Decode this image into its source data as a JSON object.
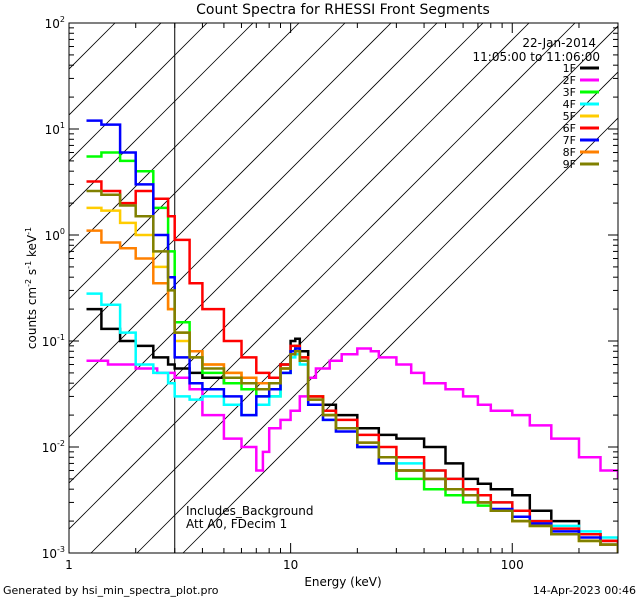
{
  "chart_data": {
    "type": "line",
    "title": "Count Spectra for RHESSI Front Segments",
    "xlabel": "Energy (keV)",
    "ylabel_parts": [
      "counts cm",
      "-2",
      " s",
      "-1",
      " keV",
      "-1"
    ],
    "xscale": "log",
    "yscale": "log",
    "xlim": [
      1,
      300
    ],
    "ylim": [
      0.001,
      100
    ],
    "x_ticks": [
      {
        "value": 1,
        "label": "1"
      },
      {
        "value": 10,
        "label": "10"
      },
      {
        "value": 100,
        "label": "100"
      }
    ],
    "y_ticks": [
      {
        "value": 0.001,
        "base": "10",
        "exp": "-3"
      },
      {
        "value": 0.01,
        "base": "10",
        "exp": "-2"
      },
      {
        "value": 0.1,
        "base": "10",
        "exp": "-1"
      },
      {
        "value": 1,
        "base": "10",
        "exp": "0"
      },
      {
        "value": 10,
        "base": "10",
        "exp": "1"
      },
      {
        "value": 100,
        "base": "10",
        "exp": "2"
      }
    ],
    "hatched_region": {
      "x_from": 1,
      "x_to": 3
    },
    "date": "22-Jan-2014",
    "time_range": "11:05:00 to 11:06:00",
    "legend_position": "top-right",
    "annotations": [
      "Includes_Background",
      "Att A0, FDecim 1"
    ],
    "series": [
      {
        "name": "1F",
        "color": "#000000",
        "x": [
          1.2,
          1.4,
          1.7,
          2.0,
          2.4,
          2.8,
          3.0,
          3.5,
          4.0,
          5.0,
          6.0,
          7.0,
          8.0,
          9.0,
          10.0,
          10.5,
          11.0,
          12.0,
          14.0,
          16.0,
          20.0,
          25.0,
          30.0,
          40.0,
          50.0,
          60.0,
          70.0,
          80.0,
          100.0,
          120.0,
          150.0,
          200.0,
          250.0,
          300.0
        ],
        "y": [
          0.2,
          0.13,
          0.1,
          0.09,
          0.07,
          0.06,
          0.055,
          0.05,
          0.045,
          0.04,
          0.04,
          0.035,
          0.035,
          0.06,
          0.1,
          0.105,
          0.08,
          0.03,
          0.025,
          0.02,
          0.015,
          0.013,
          0.012,
          0.01,
          0.007,
          0.005,
          0.0045,
          0.004,
          0.0035,
          0.0025,
          0.002,
          0.0015,
          0.0013,
          0.0012
        ]
      },
      {
        "name": "2F",
        "color": "#ff00ff",
        "x": [
          1.2,
          1.5,
          2.0,
          2.5,
          3.0,
          3.5,
          4.0,
          5.0,
          6.0,
          7.0,
          7.5,
          8.0,
          9.0,
          10.0,
          11.0,
          12.0,
          13.0,
          15.0,
          17.0,
          20.0,
          23.0,
          25.0,
          30.0,
          35.0,
          40.0,
          50.0,
          60.0,
          70.0,
          80.0,
          100.0,
          120.0,
          150.0,
          200.0,
          250.0,
          300.0
        ],
        "y": [
          0.065,
          0.06,
          0.055,
          0.05,
          0.045,
          0.035,
          0.02,
          0.012,
          0.01,
          0.006,
          0.009,
          0.015,
          0.018,
          0.022,
          0.03,
          0.045,
          0.055,
          0.065,
          0.075,
          0.085,
          0.08,
          0.07,
          0.06,
          0.05,
          0.04,
          0.035,
          0.03,
          0.025,
          0.022,
          0.02,
          0.016,
          0.012,
          0.008,
          0.006,
          0.005
        ]
      },
      {
        "name": "3F",
        "color": "#00ff00",
        "x": [
          1.2,
          1.4,
          1.7,
          2.0,
          2.4,
          2.8,
          3.0,
          3.5,
          4.0,
          5.0,
          6.0,
          7.0,
          8.0,
          9.0,
          10.0,
          10.5,
          11.0,
          12.0,
          14.0,
          16.0,
          20.0,
          25.0,
          30.0,
          40.0,
          50.0,
          60.0,
          70.0,
          80.0,
          100.0,
          120.0,
          150.0,
          200.0,
          250.0,
          300.0
        ],
        "y": [
          5.5,
          6.0,
          5.0,
          4.0,
          1.8,
          0.7,
          0.15,
          0.08,
          0.05,
          0.04,
          0.035,
          0.03,
          0.03,
          0.05,
          0.08,
          0.09,
          0.07,
          0.03,
          0.02,
          0.015,
          0.01,
          0.007,
          0.005,
          0.004,
          0.0035,
          0.003,
          0.0028,
          0.0025,
          0.002,
          0.0018,
          0.0015,
          0.0013,
          0.0012,
          0.001
        ]
      },
      {
        "name": "4F",
        "color": "#00ffff",
        "x": [
          1.2,
          1.4,
          1.7,
          2.0,
          2.4,
          2.8,
          3.0,
          3.5,
          4.0,
          5.0,
          6.0,
          7.0,
          8.0,
          9.0,
          10.0,
          10.5,
          11.0,
          12.0,
          14.0,
          16.0,
          20.0,
          25.0,
          30.0,
          40.0,
          50.0,
          60.0,
          70.0,
          80.0,
          100.0,
          120.0,
          150.0,
          200.0,
          250.0,
          300.0
        ],
        "y": [
          0.28,
          0.22,
          0.12,
          0.06,
          0.05,
          0.04,
          0.03,
          0.028,
          0.03,
          0.025,
          0.02,
          0.025,
          0.03,
          0.05,
          0.07,
          0.075,
          0.06,
          0.025,
          0.018,
          0.015,
          0.01,
          0.008,
          0.007,
          0.006,
          0.005,
          0.004,
          0.0035,
          0.003,
          0.0025,
          0.002,
          0.0018,
          0.0016,
          0.0014,
          0.0012
        ]
      },
      {
        "name": "5F",
        "color": "#ffcc00",
        "x": [
          1.2,
          1.4,
          1.7,
          2.0,
          2.4,
          2.8,
          3.0,
          3.5,
          4.0,
          5.0,
          6.0,
          7.0,
          8.0,
          9.0,
          10.0,
          10.5,
          11.0,
          12.0,
          14.0,
          16.0,
          20.0,
          25.0,
          30.0,
          40.0,
          50.0,
          60.0,
          70.0,
          80.0,
          100.0,
          120.0,
          150.0,
          200.0,
          250.0,
          300.0
        ],
        "y": [
          1.8,
          1.7,
          1.3,
          1.0,
          0.5,
          0.2,
          0.1,
          0.07,
          0.06,
          0.05,
          0.04,
          0.04,
          0.04,
          0.055,
          0.08,
          0.085,
          0.07,
          0.03,
          0.02,
          0.015,
          0.01,
          0.008,
          0.006,
          0.005,
          0.004,
          0.0035,
          0.003,
          0.0025,
          0.002,
          0.0018,
          0.0015,
          0.0013,
          0.0012,
          0.001
        ]
      },
      {
        "name": "6F",
        "color": "#ff0000",
        "x": [
          1.2,
          1.4,
          1.7,
          2.0,
          2.4,
          2.8,
          3.0,
          3.5,
          4.0,
          5.0,
          6.0,
          7.0,
          8.0,
          9.0,
          10.0,
          10.5,
          11.0,
          12.0,
          14.0,
          16.0,
          20.0,
          25.0,
          30.0,
          40.0,
          50.0,
          60.0,
          70.0,
          80.0,
          100.0,
          120.0,
          150.0,
          200.0,
          250.0,
          300.0
        ],
        "y": [
          3.2,
          2.6,
          2.0,
          2.6,
          2.2,
          1.5,
          0.9,
          0.35,
          0.2,
          0.1,
          0.07,
          0.05,
          0.045,
          0.06,
          0.09,
          0.09,
          0.07,
          0.03,
          0.022,
          0.018,
          0.013,
          0.01,
          0.008,
          0.006,
          0.005,
          0.004,
          0.0035,
          0.003,
          0.0025,
          0.002,
          0.0017,
          0.0015,
          0.0013,
          0.0011
        ]
      },
      {
        "name": "7F",
        "color": "#0000ff",
        "x": [
          1.2,
          1.4,
          1.7,
          2.0,
          2.4,
          2.8,
          3.0,
          3.5,
          4.0,
          5.0,
          6.0,
          7.0,
          8.0,
          9.0,
          10.0,
          10.5,
          11.0,
          12.0,
          14.0,
          16.0,
          20.0,
          25.0,
          30.0,
          40.0,
          50.0,
          60.0,
          70.0,
          80.0,
          100.0,
          120.0,
          150.0,
          200.0,
          250.0,
          300.0
        ],
        "y": [
          12.0,
          11.0,
          6.0,
          3.0,
          1.0,
          0.4,
          0.07,
          0.04,
          0.035,
          0.03,
          0.02,
          0.03,
          0.035,
          0.05,
          0.08,
          0.085,
          0.065,
          0.025,
          0.018,
          0.014,
          0.01,
          0.007,
          0.006,
          0.005,
          0.004,
          0.0035,
          0.003,
          0.0026,
          0.0022,
          0.0019,
          0.0016,
          0.0014,
          0.0012,
          0.001
        ]
      },
      {
        "name": "8F",
        "color": "#ff8000",
        "x": [
          1.2,
          1.4,
          1.7,
          2.0,
          2.4,
          2.8,
          3.0,
          3.5,
          4.0,
          5.0,
          6.0,
          7.0,
          8.0,
          9.0,
          10.0,
          10.5,
          11.0,
          12.0,
          14.0,
          16.0,
          20.0,
          25.0,
          30.0,
          40.0,
          50.0,
          60.0,
          70.0,
          80.0,
          100.0,
          120.0,
          150.0,
          200.0,
          250.0,
          300.0
        ],
        "y": [
          1.1,
          0.85,
          0.75,
          0.6,
          0.35,
          0.2,
          0.12,
          0.08,
          0.06,
          0.05,
          0.045,
          0.04,
          0.04,
          0.055,
          0.075,
          0.08,
          0.065,
          0.028,
          0.02,
          0.015,
          0.011,
          0.008,
          0.006,
          0.005,
          0.004,
          0.0035,
          0.003,
          0.0025,
          0.002,
          0.0018,
          0.0015,
          0.0013,
          0.0012,
          0.001
        ]
      },
      {
        "name": "9F",
        "color": "#808000",
        "x": [
          1.2,
          1.4,
          1.7,
          2.0,
          2.4,
          2.8,
          3.0,
          3.5,
          4.0,
          5.0,
          6.0,
          7.0,
          8.0,
          9.0,
          10.0,
          10.5,
          11.0,
          12.0,
          14.0,
          16.0,
          20.0,
          25.0,
          30.0,
          40.0,
          50.0,
          60.0,
          70.0,
          80.0,
          100.0,
          120.0,
          150.0,
          200.0,
          250.0,
          300.0
        ],
        "y": [
          2.6,
          2.4,
          1.9,
          1.5,
          0.7,
          0.3,
          0.12,
          0.07,
          0.055,
          0.045,
          0.04,
          0.035,
          0.04,
          0.055,
          0.075,
          0.08,
          0.065,
          0.028,
          0.02,
          0.015,
          0.011,
          0.008,
          0.006,
          0.005,
          0.004,
          0.0035,
          0.003,
          0.0025,
          0.002,
          0.0018,
          0.0015,
          0.0013,
          0.0012,
          0.001
        ]
      }
    ]
  },
  "footer": {
    "generated_by": "Generated by hsi_min_spectra_plot.pro",
    "timestamp": "14-Apr-2023 00:46"
  }
}
